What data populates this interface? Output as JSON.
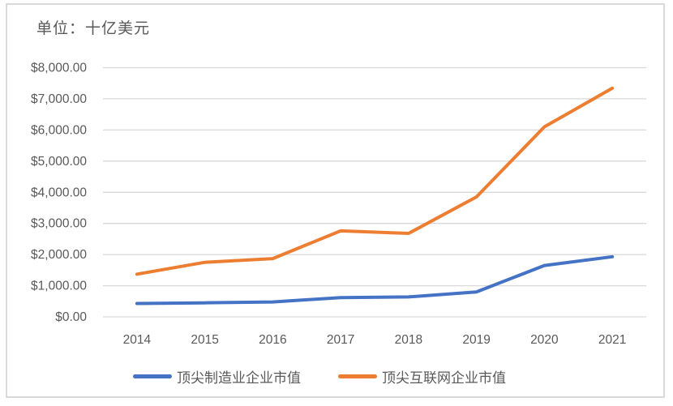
{
  "chart": {
    "unit_label": "单位：十亿美元"
  },
  "chart_data": {
    "type": "line",
    "title": "",
    "unit_label": "单位：十亿美元",
    "categories": [
      "2014",
      "2015",
      "2016",
      "2017",
      "2018",
      "2019",
      "2020",
      "2021"
    ],
    "series": [
      {
        "name": "顶尖制造业企业市值",
        "color": "#4472C4",
        "values": [
          430,
          450,
          480,
          620,
          640,
          800,
          1650,
          1930
        ]
      },
      {
        "name": "顶尖互联网企业市值",
        "color": "#ED7D31",
        "values": [
          1370,
          1750,
          1870,
          2760,
          2680,
          3850,
          6100,
          7340
        ]
      }
    ],
    "xlabel": "",
    "ylabel": "",
    "ylim": [
      0,
      8000
    ],
    "y_tick_step": 1000,
    "y_ticks": [
      {
        "value": 8000,
        "label": "$8,000.00"
      },
      {
        "value": 7000,
        "label": "$7,000.00"
      },
      {
        "value": 6000,
        "label": "$6,000.00"
      },
      {
        "value": 5000,
        "label": "$5,000.00"
      },
      {
        "value": 4000,
        "label": "$4,000.00"
      },
      {
        "value": 3000,
        "label": "$3,000.00"
      },
      {
        "value": 2000,
        "label": "$2,000.00"
      },
      {
        "value": 1000,
        "label": "$1,000.00"
      },
      {
        "value": 0,
        "label": "$0.00"
      }
    ],
    "grid": true,
    "legend_position": "bottom",
    "colors": {
      "gridline": "#D9D9D9",
      "frame_border": "#D9D9D9",
      "text": "#595959",
      "series_blue": "#4472C4",
      "series_orange": "#ED7D31"
    }
  }
}
